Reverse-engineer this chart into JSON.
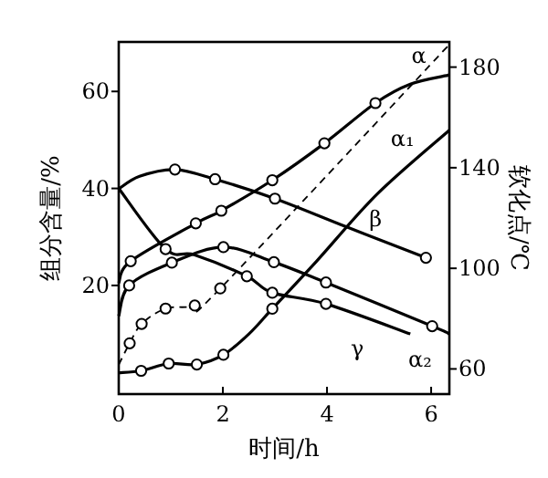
{
  "chart_data": {
    "type": "line",
    "xlabel": "时间/h",
    "ylabel": "组分含量/%",
    "y2label": "软化点/℃",
    "xlim": [
      0,
      6.35
    ],
    "xticks": [
      0,
      2,
      4,
      6
    ],
    "ylim": [
      -2.4,
      70.2
    ],
    "yticks": [
      20,
      40,
      60
    ],
    "y2lim": [
      50,
      190
    ],
    "y2ticks": [
      60,
      100,
      140,
      180
    ],
    "grid": false,
    "series": [
      {
        "name": "α",
        "color": "#000000",
        "marker": "none",
        "line_style": "solid",
        "x": [
          0,
          0.23,
          1.48,
          1.97,
          2.95,
          3.95,
          4.93,
          5.6,
          6.35
        ],
        "values": [
          20.5,
          25,
          32.8,
          35.4,
          41.7,
          49.3,
          57.6,
          61.5,
          63.4
        ]
      },
      {
        "name": "α₁",
        "color": "#000000",
        "marker": "none",
        "line_style": "solid",
        "x": [
          0,
          0.43,
          0.96,
          1.5,
          2.01,
          2.5,
          2.95,
          3.8,
          4.97,
          6.35
        ],
        "values": [
          2,
          2.4,
          3.9,
          3.7,
          5.7,
          10,
          15.2,
          25,
          38.9,
          52
        ]
      },
      {
        "name": "β",
        "color": "#000000",
        "marker": "none",
        "line_style": "solid",
        "x": [
          0,
          0.4,
          1.08,
          1.85,
          3.0,
          4.39,
          5.9
        ],
        "values": [
          39.9,
          42.5,
          43.9,
          41.9,
          37.9,
          32,
          25.7
        ]
      },
      {
        "name": "α₂",
        "color": "#000000",
        "marker": "none",
        "line_style": "solid",
        "x": [
          0,
          0.2,
          1.02,
          2.01,
          2.98,
          3.98,
          6.02,
          6.35
        ],
        "values": [
          13.7,
          20,
          24.7,
          27.9,
          24.8,
          20.6,
          11.6,
          10
        ]
      },
      {
        "name": "γ",
        "color": "#000000",
        "marker": "none",
        "line_style": "solid",
        "x": [
          0,
          0.9,
          1.46,
          2.46,
          2.95,
          3.98,
          5.6
        ],
        "values": [
          40,
          27.5,
          26.3,
          21.9,
          18.5,
          16.2,
          10
        ]
      },
      {
        "axis": "y2",
        "color": "#000000",
        "marker": "none",
        "line_style": "dashed",
        "x": [
          0,
          0.21,
          0.44,
          0.9,
          1.46,
          1.95,
          6.35
        ],
        "values": [
          61.7,
          70.2,
          77.9,
          84,
          85.2,
          92,
          189
        ]
      },
      {
        "type": "scatter",
        "color": "#000000",
        "marker": "circle",
        "x": [
          0.23,
          1.48,
          1.97,
          2.95,
          3.95,
          4.93,
          0.43,
          0.96,
          1.5,
          2.01,
          2.95,
          1.08,
          1.85,
          3.0,
          5.9,
          0.2,
          1.02,
          2.01,
          2.98,
          3.98,
          6.02,
          0.9,
          2.46,
          2.95,
          3.98
        ],
        "values": [
          25,
          32.8,
          35.4,
          41.7,
          49.3,
          57.6,
          2.4,
          3.9,
          3.7,
          5.7,
          15.2,
          43.9,
          41.9,
          37.9,
          25.7,
          20,
          24.7,
          27.9,
          24.8,
          20.6,
          11.6,
          27.5,
          21.9,
          18.5,
          16.2
        ]
      },
      {
        "type": "scatter",
        "axis": "y2",
        "color": "#000000",
        "marker": "circle",
        "x": [
          0.21,
          0.44,
          0.9,
          1.46,
          1.95
        ],
        "values": [
          70.2,
          77.9,
          84,
          85.2,
          92
        ]
      }
    ]
  }
}
